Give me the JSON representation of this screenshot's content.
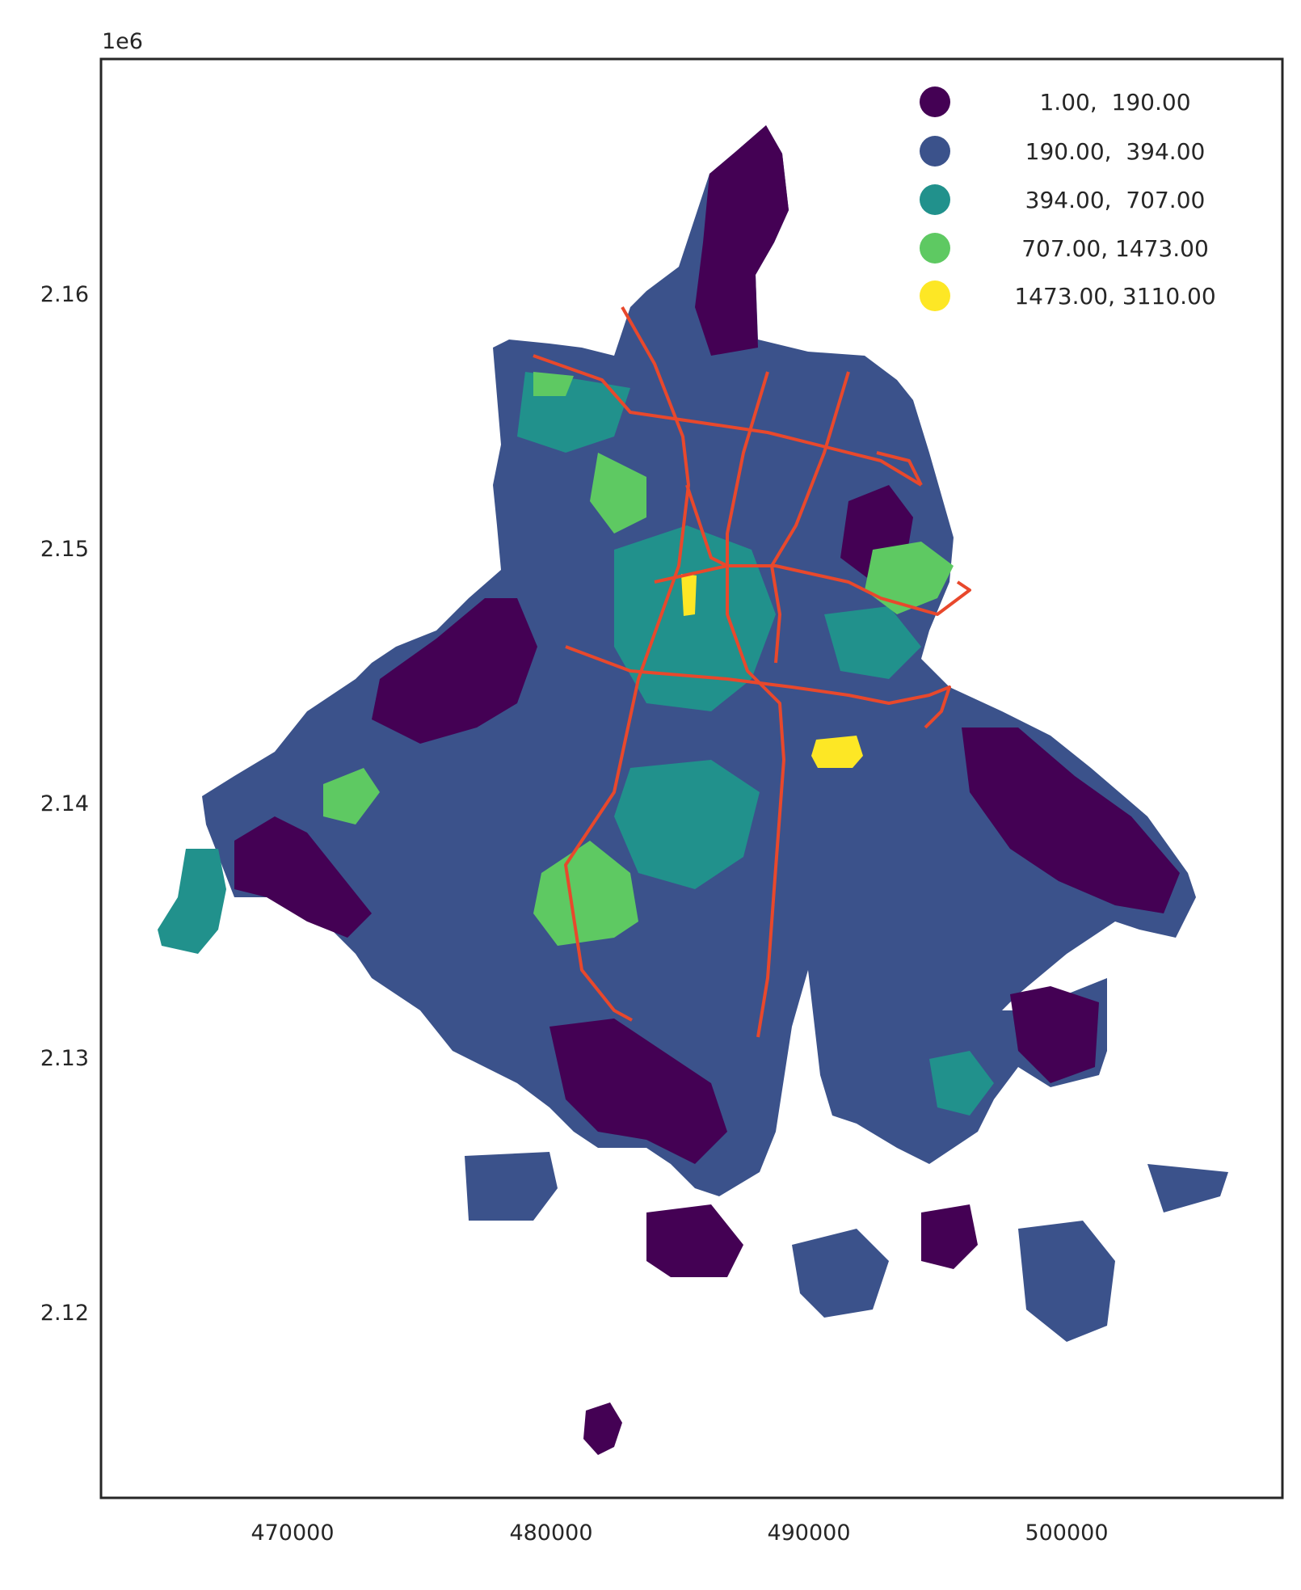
{
  "map": {
    "type": "choropleth",
    "offset_label": "1e6",
    "x_range": [
      461600,
      507400
    ],
    "y_range": [
      2.1121,
      2.1689
    ],
    "x_ticks": [
      {
        "value": 470000,
        "label": "470000"
      },
      {
        "value": 480000,
        "label": "480000"
      },
      {
        "value": 490000,
        "label": "490000"
      },
      {
        "value": 500000,
        "label": "500000"
      }
    ],
    "y_ticks": [
      {
        "value": 2.16,
        "label": "2.16"
      },
      {
        "value": 2.15,
        "label": "2.15"
      },
      {
        "value": 2.14,
        "label": "2.14"
      },
      {
        "value": 2.13,
        "label": "2.13"
      },
      {
        "value": 2.12,
        "label": "2.12"
      }
    ],
    "legend_position": "top-right",
    "legend": [
      {
        "label": "1.00,  190.00",
        "color": "#440154"
      },
      {
        "label": "190.00,  394.00",
        "color": "#3b528b"
      },
      {
        "label": "394.00,  707.00",
        "color": "#21918c"
      },
      {
        "label": "707.00, 1473.00",
        "color": "#5ec962"
      },
      {
        "label": "1473.00, 3110.00",
        "color": "#fde725"
      }
    ],
    "line_color": "#e8482c",
    "grid": false
  }
}
